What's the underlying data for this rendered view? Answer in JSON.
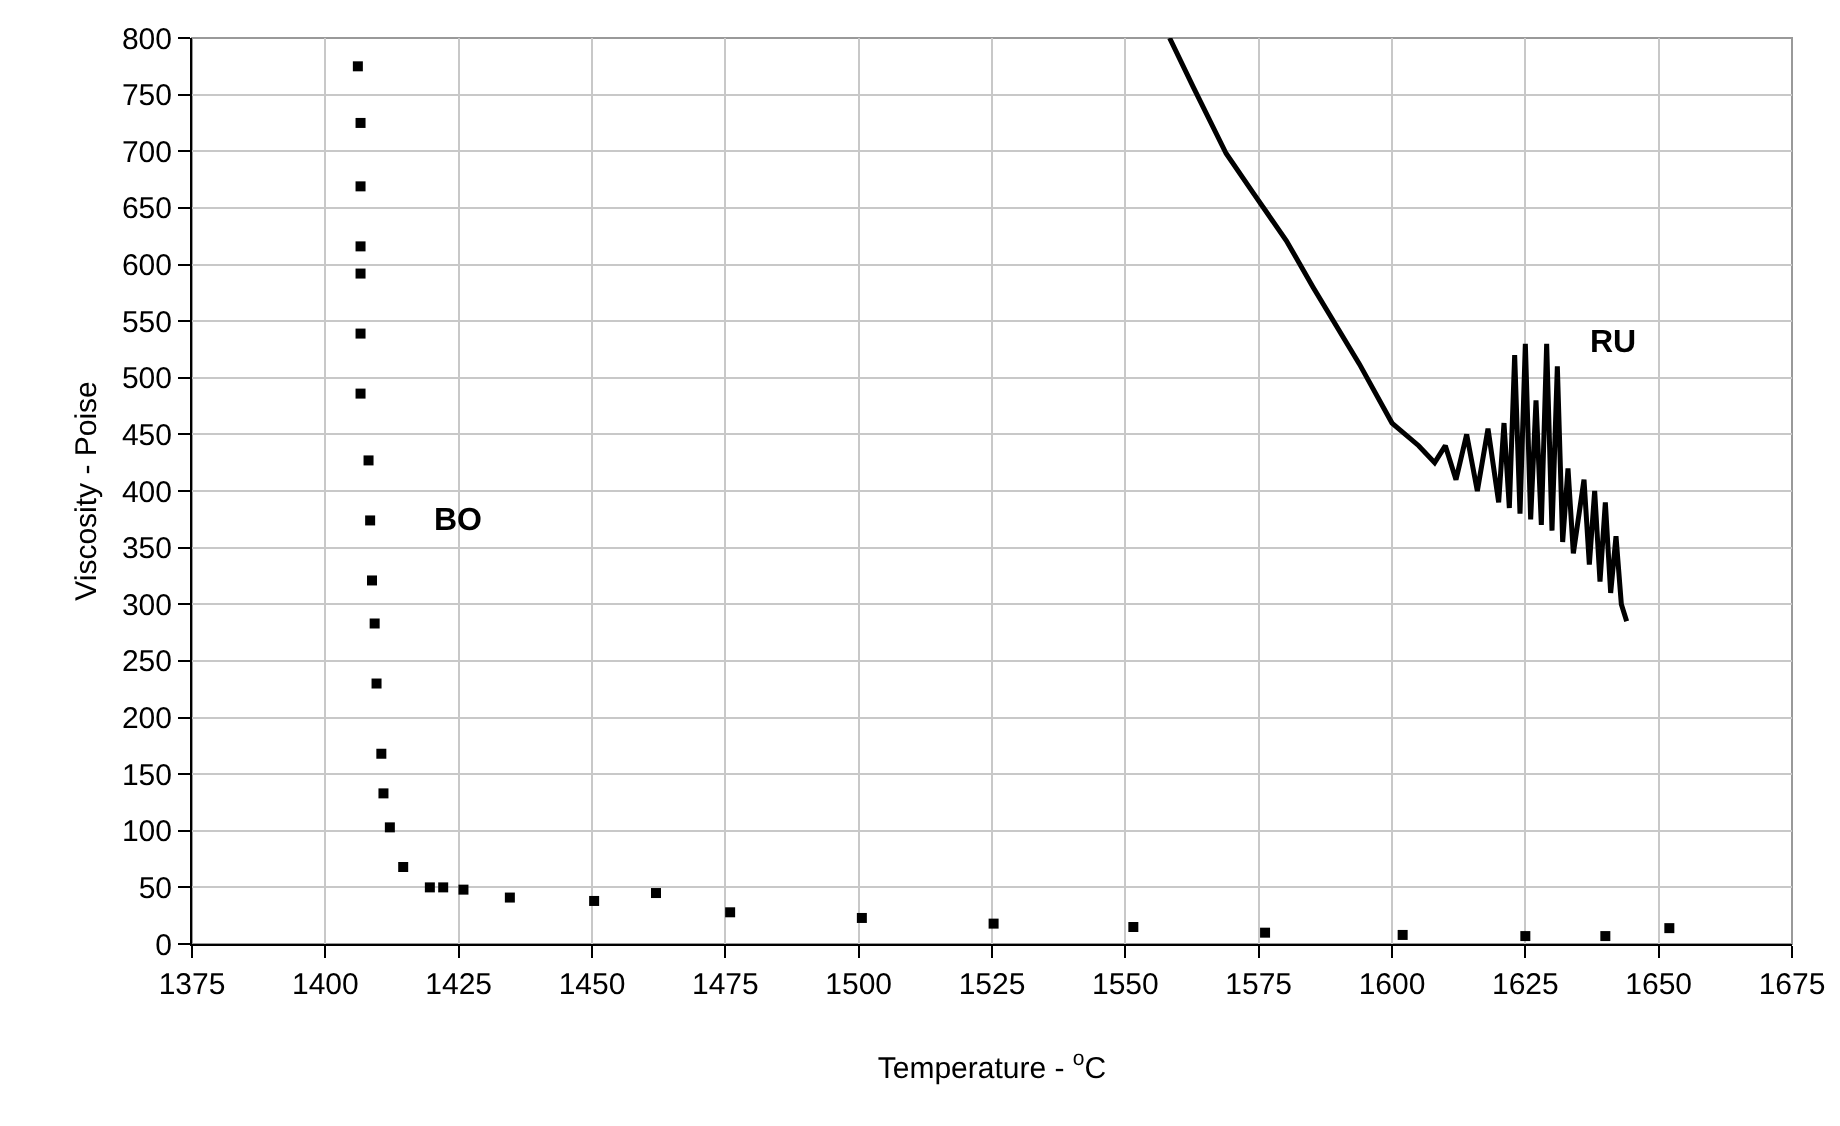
{
  "chart_data": {
    "type": "line",
    "xlabel": "Temperature - $^{o}$C",
    "ylabel": "Viscosity - Poise",
    "xlim": [
      1375,
      1675
    ],
    "xticks": [
      1375,
      1400,
      1425,
      1450,
      1475,
      1500,
      1525,
      1550,
      1575,
      1600,
      1625,
      1650,
      1675
    ],
    "ylim": [
      0,
      800
    ],
    "yticks": [
      0,
      50,
      100,
      150,
      200,
      250,
      300,
      350,
      400,
      450,
      500,
      550,
      600,
      650,
      700,
      750,
      800
    ],
    "grid": true,
    "legend": false,
    "series": [
      {
        "type": "scatter",
        "name": "BO",
        "marker": "square",
        "color": "#000000",
        "x": [
          1406.1,
          1406.6,
          1406.6,
          1406.6,
          1406.6,
          1406.6,
          1406.6,
          1408.1,
          1408.4,
          1408.75,
          1409.25,
          1409.6,
          1410.5,
          1410.9,
          1412.1,
          1414.6,
          1419.6,
          1422.1,
          1425.9,
          1434.6,
          1450.4,
          1462,
          1475.9,
          1500.6,
          1525.3,
          1551.5,
          1576.2,
          1602,
          1625,
          1640,
          1652
        ],
        "values": [
          775,
          725,
          669,
          616,
          592,
          539,
          486,
          427,
          374,
          321,
          283,
          230,
          168,
          133,
          103,
          68,
          50,
          50,
          48,
          41,
          38,
          45,
          28,
          23,
          18,
          15,
          10,
          8,
          7,
          7,
          14
        ]
      },
      {
        "name": "RU",
        "color": "#000000",
        "x": [
          1558.3,
          1562.7,
          1568.9,
          1574,
          1580.2,
          1585.2,
          1593.9,
          1600,
          1605,
          1608,
          1610,
          1612,
          1614,
          1616,
          1618,
          1620,
          1621,
          1622,
          1623,
          1624,
          1625,
          1626,
          1627,
          1628,
          1629,
          1630,
          1631,
          1632,
          1633,
          1634,
          1636,
          1637,
          1638,
          1639,
          1640,
          1641,
          1642,
          1643,
          1644
        ],
        "values": [
          800,
          757,
          698,
          663,
          621,
          580,
          512,
          460,
          440,
          425,
          440,
          410,
          450,
          400,
          455,
          390,
          460,
          385,
          520,
          380,
          530,
          375,
          480,
          370,
          530,
          365,
          510,
          355,
          420,
          345,
          410,
          335,
          400,
          320,
          390,
          310,
          360,
          300,
          285
        ]
      }
    ]
  }
}
